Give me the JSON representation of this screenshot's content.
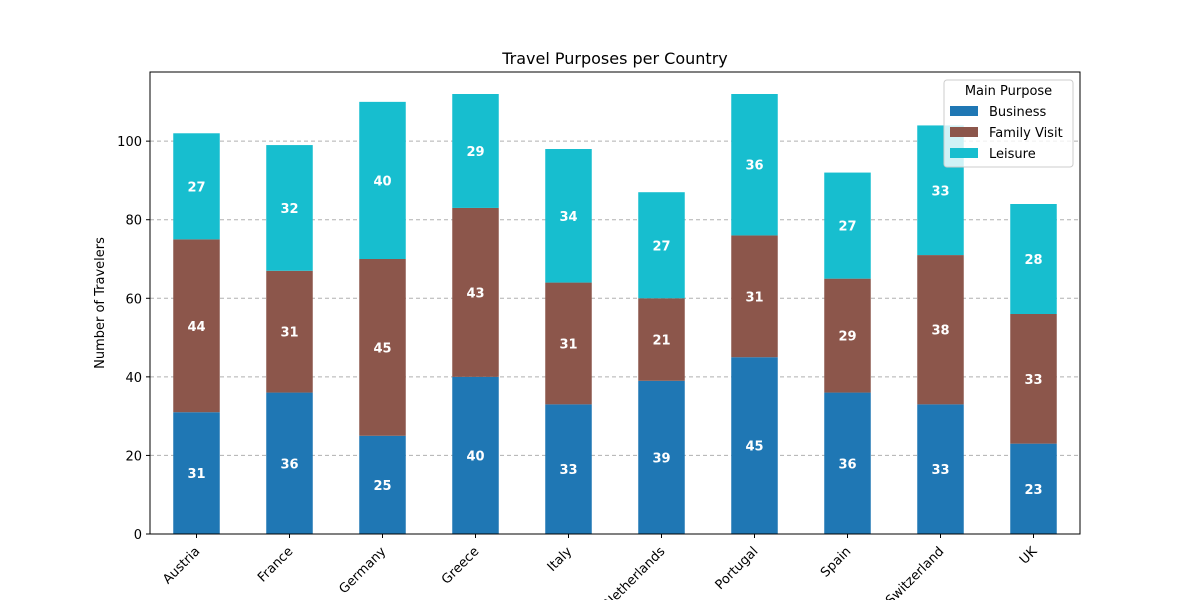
{
  "chart_data": {
    "type": "bar",
    "stacked": true,
    "title": "Travel Purposes per Country",
    "xlabel": "",
    "ylabel": "Number of Travelers",
    "categories": [
      "Austria",
      "France",
      "Germany",
      "Greece",
      "Italy",
      "Netherlands",
      "Portugal",
      "Spain",
      "Switzerland",
      "UK"
    ],
    "series": [
      {
        "name": "Business",
        "color": "#1f77b4",
        "values": [
          31,
          36,
          25,
          40,
          33,
          39,
          45,
          36,
          33,
          23
        ]
      },
      {
        "name": "Family Visit",
        "color": "#8c564b",
        "values": [
          44,
          31,
          45,
          43,
          31,
          21,
          31,
          29,
          38,
          33
        ]
      },
      {
        "name": "Leisure",
        "color": "#17becf",
        "values": [
          27,
          32,
          40,
          29,
          34,
          27,
          36,
          27,
          33,
          28
        ]
      }
    ],
    "ylim": [
      0,
      117.6
    ],
    "yticks": [
      0,
      20,
      40,
      60,
      80,
      100
    ],
    "grid": "y-dashed",
    "legend": {
      "title": "Main Purpose",
      "placement": "top-right"
    }
  }
}
